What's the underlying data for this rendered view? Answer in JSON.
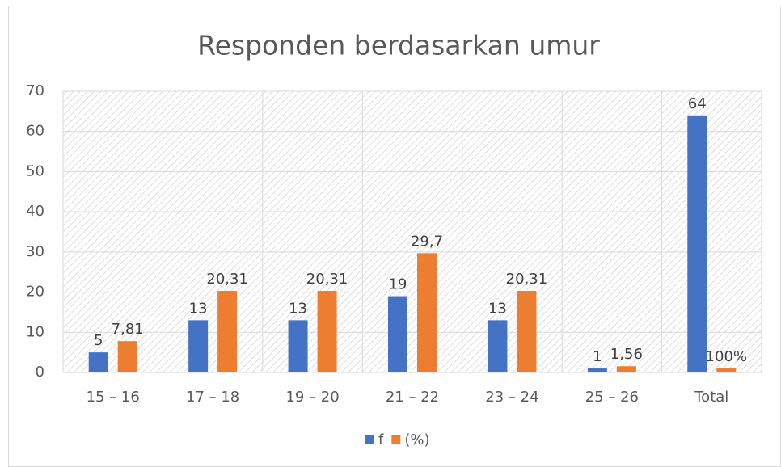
{
  "chart_data": {
    "type": "bar",
    "title": "Responden berdasarkan umur",
    "categories": [
      "15 – 16",
      "17 – 18",
      "19 – 20",
      "21 – 22",
      "23 – 24",
      "25 – 26",
      "Total"
    ],
    "series": [
      {
        "name": "f",
        "color": "#4472c4",
        "values": [
          5,
          13,
          13,
          19,
          13,
          1,
          64
        ]
      },
      {
        "name": "(%)",
        "color": "#ed7d31",
        "values": [
          7.81,
          20.31,
          20.31,
          29.7,
          20.31,
          1.56,
          1
        ],
        "value_labels": [
          "7,81",
          "20,31",
          "20,31",
          "29,7",
          "20,31",
          "1,56",
          "100%"
        ]
      }
    ],
    "ylim": [
      0,
      70
    ],
    "yticks": [
      0,
      10,
      20,
      30,
      40,
      50,
      60,
      70
    ],
    "grid": true,
    "legend": "bottom"
  }
}
